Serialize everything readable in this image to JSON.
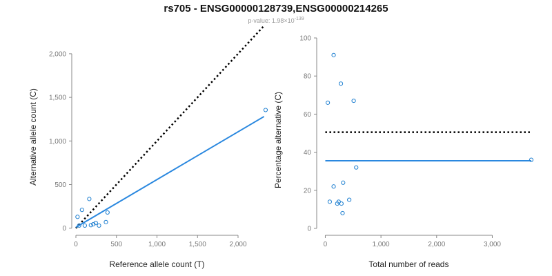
{
  "title": "rs705 - ENSG00000128739,ENSG00000214265",
  "subtitle": {
    "prefix": "p-value: 1.98×10",
    "exponent": "-139"
  },
  "colors": {
    "points": "#1e7fd0",
    "fit": "#2a88df",
    "reference": "#000000",
    "axis": "#888888",
    "tick_text": "#777777"
  },
  "chart_data": [
    {
      "type": "scatter",
      "xlabel": "Reference allele count (T)",
      "ylabel": "Alternative allele count (C)",
      "xlim": [
        0,
        2400
      ],
      "ylim": [
        -50,
        2300
      ],
      "x_ticks": [
        0,
        500,
        1000,
        1500,
        2000
      ],
      "x_tick_labels": [
        "0",
        "500",
        "1,000",
        "1,500",
        "2,000"
      ],
      "y_ticks": [
        0,
        500,
        1000,
        1500,
        2000
      ],
      "y_tick_labels": [
        "0",
        "500",
        "1,000",
        "1,500",
        "2,000"
      ],
      "points": [
        {
          "x": 20,
          "y": 130
        },
        {
          "x": 75,
          "y": 210
        },
        {
          "x": 40,
          "y": 30
        },
        {
          "x": 110,
          "y": 30
        },
        {
          "x": 165,
          "y": 335
        },
        {
          "x": 185,
          "y": 35
        },
        {
          "x": 215,
          "y": 45
        },
        {
          "x": 245,
          "y": 60
        },
        {
          "x": 285,
          "y": 30
        },
        {
          "x": 370,
          "y": 70
        },
        {
          "x": 390,
          "y": 180
        },
        {
          "x": 2340,
          "y": 1355
        }
      ],
      "fit_line": {
        "x": [
          0,
          2320
        ],
        "y": [
          10,
          1280
        ]
      },
      "reference_line": {
        "x": [
          0,
          2320
        ],
        "y": [
          0,
          2320
        ]
      },
      "grid": false
    },
    {
      "type": "scatter",
      "xlabel": "Total number of reads",
      "ylabel": "Percentage alternative (C)",
      "xlim": [
        -80,
        3800
      ],
      "ylim": [
        0,
        100
      ],
      "x_ticks": [
        0,
        1000,
        2000,
        3000
      ],
      "x_tick_labels": [
        "0",
        "1,000",
        "2,000",
        "3,000"
      ],
      "y_ticks": [
        0,
        20,
        40,
        60,
        80,
        100
      ],
      "y_tick_labels": [
        "0",
        "20",
        "40",
        "60",
        "80",
        "100"
      ],
      "points": [
        {
          "x": 45,
          "y": 66
        },
        {
          "x": 80,
          "y": 14
        },
        {
          "x": 150,
          "y": 91
        },
        {
          "x": 150,
          "y": 22
        },
        {
          "x": 215,
          "y": 13
        },
        {
          "x": 240,
          "y": 14
        },
        {
          "x": 280,
          "y": 76
        },
        {
          "x": 290,
          "y": 13
        },
        {
          "x": 310,
          "y": 8
        },
        {
          "x": 320,
          "y": 24
        },
        {
          "x": 430,
          "y": 15
        },
        {
          "x": 510,
          "y": 67
        },
        {
          "x": 555,
          "y": 32
        },
        {
          "x": 3700,
          "y": 36
        }
      ],
      "fit_line": {
        "x": [
          0,
          3700
        ],
        "y": [
          35.5,
          35.5
        ]
      },
      "reference_line": {
        "x": [
          0,
          3700
        ],
        "y": [
          50.5,
          50.5
        ]
      },
      "grid": false
    }
  ]
}
